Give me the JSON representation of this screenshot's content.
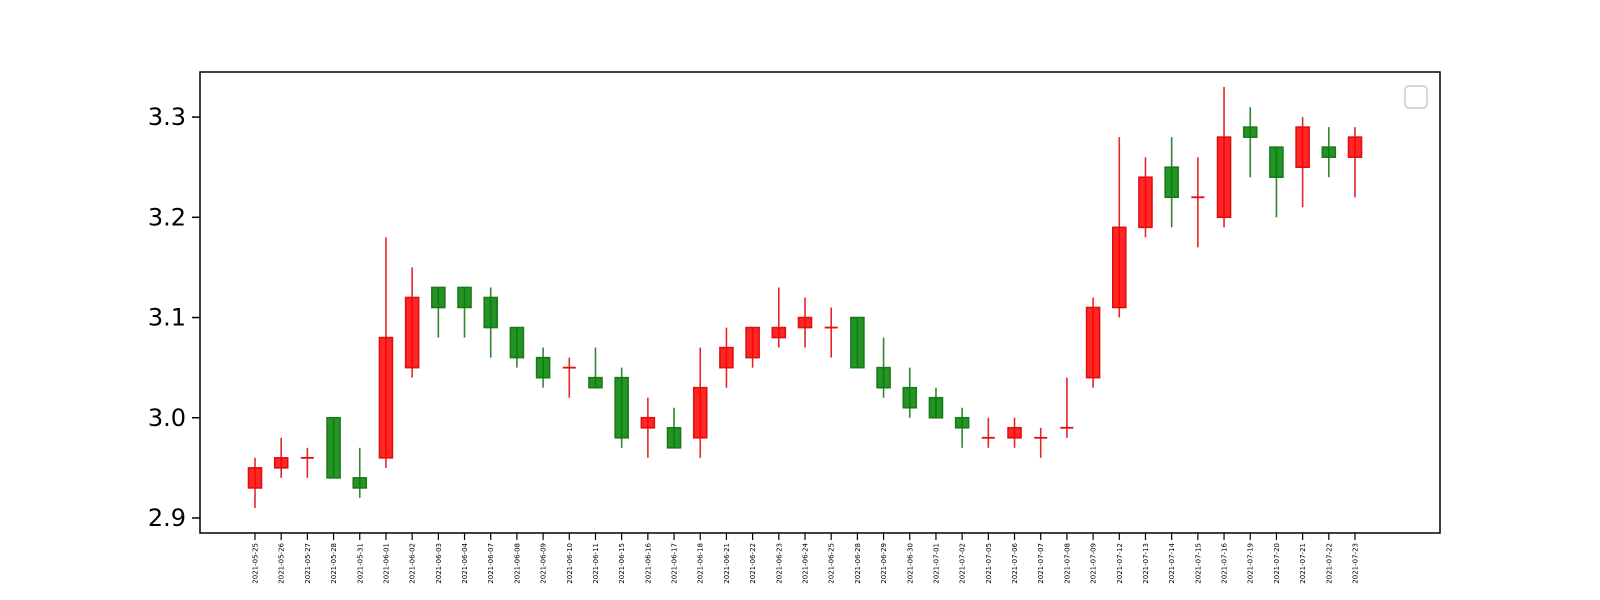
{
  "chart_data": {
    "type": "candlestick",
    "title": "",
    "xlabel": "",
    "ylabel": "",
    "ylim": [
      2.885,
      3.345
    ],
    "y_ticks": [
      2.9,
      3.0,
      3.1,
      3.2,
      3.3
    ],
    "y_tick_labels": [
      "2.9",
      "3.0",
      "3.1",
      "3.2",
      "3.3"
    ],
    "grid": false,
    "legend": "top-right (empty)",
    "colors": {
      "up": "#ff0000",
      "down": "#008000",
      "up_edge": "#e01010",
      "down_edge": "#1a7a1a"
    },
    "categories": [
      "2021-05-25",
      "2021-05-26",
      "2021-05-27",
      "2021-05-28",
      "2021-05-31",
      "2021-06-01",
      "2021-06-02",
      "2021-06-03",
      "2021-06-04",
      "2021-06-07",
      "2021-06-08",
      "2021-06-09",
      "2021-06-10",
      "2021-06-11",
      "2021-06-15",
      "2021-06-16",
      "2021-06-17",
      "2021-06-18",
      "2021-06-21",
      "2021-06-22",
      "2021-06-23",
      "2021-06-24",
      "2021-06-25",
      "2021-06-28",
      "2021-06-29",
      "2021-06-30",
      "2021-07-01",
      "2021-07-02",
      "2021-07-05",
      "2021-07-06",
      "2021-07-07",
      "2021-07-08",
      "2021-07-09",
      "2021-07-12",
      "2021-07-13",
      "2021-07-14",
      "2021-07-15",
      "2021-07-16",
      "2021-07-19",
      "2021-07-20",
      "2021-07-21",
      "2021-07-22",
      "2021-07-23"
    ],
    "ohlc": [
      {
        "open": 2.93,
        "high": 2.96,
        "low": 2.91,
        "close": 2.95
      },
      {
        "open": 2.95,
        "high": 2.98,
        "low": 2.94,
        "close": 2.96
      },
      {
        "open": 2.96,
        "high": 2.97,
        "low": 2.94,
        "close": 2.96
      },
      {
        "open": 3.0,
        "high": 3.0,
        "low": 2.94,
        "close": 2.94
      },
      {
        "open": 2.94,
        "high": 2.97,
        "low": 2.92,
        "close": 2.93
      },
      {
        "open": 2.96,
        "high": 3.18,
        "low": 2.95,
        "close": 3.08
      },
      {
        "open": 3.05,
        "high": 3.15,
        "low": 3.04,
        "close": 3.12
      },
      {
        "open": 3.13,
        "high": 3.13,
        "low": 3.08,
        "close": 3.11
      },
      {
        "open": 3.13,
        "high": 3.13,
        "low": 3.08,
        "close": 3.11
      },
      {
        "open": 3.12,
        "high": 3.13,
        "low": 3.06,
        "close": 3.09
      },
      {
        "open": 3.09,
        "high": 3.09,
        "low": 3.05,
        "close": 3.06
      },
      {
        "open": 3.06,
        "high": 3.07,
        "low": 3.03,
        "close": 3.04
      },
      {
        "open": 3.05,
        "high": 3.06,
        "low": 3.02,
        "close": 3.05
      },
      {
        "open": 3.04,
        "high": 3.07,
        "low": 3.03,
        "close": 3.03
      },
      {
        "open": 3.04,
        "high": 3.05,
        "low": 2.97,
        "close": 2.98
      },
      {
        "open": 2.99,
        "high": 3.02,
        "low": 2.96,
        "close": 3.0
      },
      {
        "open": 2.99,
        "high": 3.01,
        "low": 2.97,
        "close": 2.97
      },
      {
        "open": 2.98,
        "high": 3.07,
        "low": 2.96,
        "close": 3.03
      },
      {
        "open": 3.05,
        "high": 3.09,
        "low": 3.03,
        "close": 3.07
      },
      {
        "open": 3.06,
        "high": 3.09,
        "low": 3.05,
        "close": 3.09
      },
      {
        "open": 3.08,
        "high": 3.13,
        "low": 3.07,
        "close": 3.09
      },
      {
        "open": 3.09,
        "high": 3.12,
        "low": 3.07,
        "close": 3.1
      },
      {
        "open": 3.09,
        "high": 3.11,
        "low": 3.06,
        "close": 3.09
      },
      {
        "open": 3.1,
        "high": 3.1,
        "low": 3.05,
        "close": 3.05
      },
      {
        "open": 3.05,
        "high": 3.08,
        "low": 3.02,
        "close": 3.03
      },
      {
        "open": 3.03,
        "high": 3.05,
        "low": 3.0,
        "close": 3.01
      },
      {
        "open": 3.02,
        "high": 3.03,
        "low": 3.0,
        "close": 3.0
      },
      {
        "open": 3.0,
        "high": 3.01,
        "low": 2.97,
        "close": 2.99
      },
      {
        "open": 2.98,
        "high": 3.0,
        "low": 2.97,
        "close": 2.98
      },
      {
        "open": 2.98,
        "high": 3.0,
        "low": 2.97,
        "close": 2.99
      },
      {
        "open": 2.98,
        "high": 2.99,
        "low": 2.96,
        "close": 2.98
      },
      {
        "open": 2.99,
        "high": 3.04,
        "low": 2.98,
        "close": 2.99
      },
      {
        "open": 3.04,
        "high": 3.12,
        "low": 3.03,
        "close": 3.11
      },
      {
        "open": 3.11,
        "high": 3.28,
        "low": 3.1,
        "close": 3.19
      },
      {
        "open": 3.19,
        "high": 3.26,
        "low": 3.18,
        "close": 3.24
      },
      {
        "open": 3.25,
        "high": 3.28,
        "low": 3.19,
        "close": 3.22
      },
      {
        "open": 3.22,
        "high": 3.26,
        "low": 3.17,
        "close": 3.22
      },
      {
        "open": 3.2,
        "high": 3.33,
        "low": 3.19,
        "close": 3.28
      },
      {
        "open": 3.29,
        "high": 3.31,
        "low": 3.24,
        "close": 3.28
      },
      {
        "open": 3.27,
        "high": 3.27,
        "low": 3.2,
        "close": 3.24
      },
      {
        "open": 3.25,
        "high": 3.3,
        "low": 3.21,
        "close": 3.29
      },
      {
        "open": 3.27,
        "high": 3.29,
        "low": 3.24,
        "close": 3.26
      },
      {
        "open": 3.26,
        "high": 3.29,
        "low": 3.22,
        "close": 3.28
      }
    ]
  }
}
